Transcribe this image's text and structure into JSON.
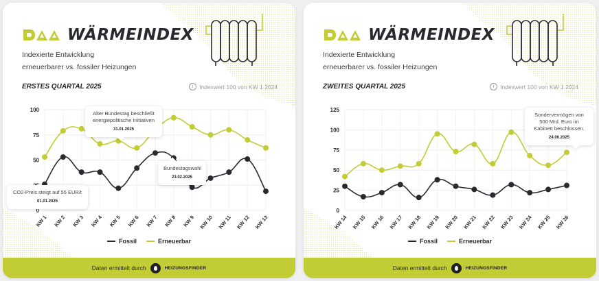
{
  "brand": {
    "logo_mark": "DAA",
    "title": "WÄRMEINDEX",
    "accent_color": "#c2cc34",
    "dark_color": "#2a2a2e"
  },
  "subtitle_line1": "Indexierte Entwicklung",
  "subtitle_line2": "erneuerbarer vs. fossiler Heizungen",
  "index_note": "Indexwert 100 von KW 1 2024",
  "legend": {
    "fossil": "Fossil",
    "erneuerbar": "Erneuerbar"
  },
  "footer": {
    "text": "Daten ermittelt durch",
    "partner": "HEIZUNGSFINDER"
  },
  "panels": [
    {
      "quarter": "ERSTES QUARTAL 2025",
      "annotations": [
        {
          "text": "CO2-Preis steigt auf 55 EUR/t",
          "date": "01.01.2025"
        },
        {
          "text": "Alter Bundestag beschließt energiepolitische Initiativen",
          "date": "31.01.2025"
        },
        {
          "text": "Bundestagswahl",
          "date": "23.02.2025"
        }
      ]
    },
    {
      "quarter": "ZWEITES QUARTAL 2025",
      "annotations": [
        {
          "text": "Sondervermögen von 500 Mrd. Euro im Kabinett beschlossen.",
          "date": "24.06.2025"
        }
      ]
    }
  ],
  "chart_data": [
    {
      "type": "line",
      "title": "ERSTES QUARTAL 2025",
      "xlabel": "",
      "ylabel": "",
      "ylim": [
        0,
        100
      ],
      "yticks": [
        0,
        25,
        50,
        75,
        100
      ],
      "grid": true,
      "legend_position": "bottom",
      "categories": [
        "KW 1",
        "KW 2",
        "KW 3",
        "KW 4",
        "KW 5",
        "KW 6",
        "KW 7",
        "KW 8",
        "KW 9",
        "KW 10",
        "KW 11",
        "KW 12",
        "KW 13"
      ],
      "series": [
        {
          "name": "Fossil",
          "color": "#2a2a2e",
          "values": [
            26,
            53,
            38,
            38,
            22,
            42,
            57,
            52,
            23,
            32,
            38,
            51,
            19
          ]
        },
        {
          "name": "Erneuerbar",
          "color": "#c2cc34",
          "values": [
            53,
            79,
            81,
            66,
            69,
            62,
            80,
            92,
            83,
            75,
            80,
            70,
            62
          ]
        }
      ],
      "annotations": [
        {
          "x": "KW 1",
          "text": "CO2-Preis steigt auf 55 EUR/t",
          "date": "01.01.2025"
        },
        {
          "x": "KW 5",
          "text": "Alter Bundestag beschließt energiepolitische Initiativen",
          "date": "31.01.2025"
        },
        {
          "x": "KW 8",
          "text": "Bundestagswahl",
          "date": "23.02.2025"
        }
      ]
    },
    {
      "type": "line",
      "title": "ZWEITES QUARTAL 2025",
      "xlabel": "",
      "ylabel": "",
      "ylim": [
        0,
        125
      ],
      "yticks": [
        0,
        25,
        50,
        75,
        100,
        125
      ],
      "grid": true,
      "legend_position": "bottom",
      "categories": [
        "KW 14",
        "KW 15",
        "KW 16",
        "KW 17",
        "KW 18",
        "KW 19",
        "KW 20",
        "KW 21",
        "KW 22",
        "KW 23",
        "KW 24",
        "KW 25",
        "KW 26"
      ],
      "series": [
        {
          "name": "Fossil",
          "color": "#2a2a2e",
          "values": [
            30,
            17,
            22,
            32,
            16,
            38,
            30,
            26,
            19,
            32,
            22,
            26,
            31
          ]
        },
        {
          "name": "Erneuerbar",
          "color": "#c2cc34",
          "values": [
            42,
            58,
            50,
            55,
            58,
            95,
            73,
            82,
            58,
            97,
            68,
            56,
            72
          ]
        }
      ],
      "annotations": [
        {
          "x": "KW 26",
          "text": "Sondervermögen von 500 Mrd. Euro im Kabinett beschlossen.",
          "date": "24.06.2025"
        }
      ]
    }
  ]
}
